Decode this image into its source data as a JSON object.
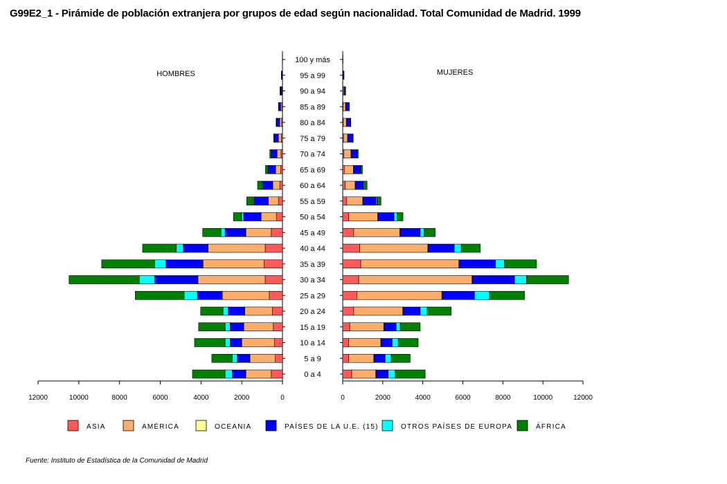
{
  "chart_data": {
    "type": "bar",
    "orientation": "horizontal-pyramid",
    "title": "G99E2_1 - Pirámide de población extranjera por grupos de edad según nacionalidad. Total Comunidad de Madrid. 1999",
    "left_label": "HOMBRES",
    "right_label": "MUJERES",
    "categories": [
      "0 a 4",
      "5 a 9",
      "10 a 14",
      "15 a 19",
      "20 a 24",
      "25 a 29",
      "30 a 34",
      "35 a 39",
      "40 a 44",
      "45 a 49",
      "50 a 54",
      "55 a 59",
      "60 a 64",
      "65 a 69",
      "70 a 74",
      "75 a 79",
      "80 a 84",
      "85 a 89",
      "90 a 94",
      "95 a 99",
      "100 y más"
    ],
    "xlim": [
      0,
      12000
    ],
    "x_ticks_left": [
      "12000",
      "10000",
      "8000",
      "6000",
      "4000",
      "2000",
      "0"
    ],
    "x_ticks_right": [
      "0",
      "2000",
      "4000",
      "6000",
      "8000",
      "10000",
      "12000"
    ],
    "grid": false,
    "legend_position": "bottom",
    "series": [
      {
        "name": "ASIA",
        "color": "#ff5a5a",
        "hombres": [
          550,
          350,
          400,
          450,
          500,
          650,
          850,
          900,
          850,
          550,
          300,
          200,
          130,
          90,
          70,
          50,
          40,
          30,
          20,
          10,
          0
        ],
        "mujeres": [
          450,
          300,
          300,
          350,
          550,
          700,
          800,
          900,
          850,
          550,
          300,
          200,
          120,
          80,
          60,
          40,
          30,
          20,
          10,
          5,
          0
        ]
      },
      {
        "name": "AMÉRICA",
        "color": "#ffad6b",
        "hombres": [
          1250,
          1250,
          1600,
          1450,
          1350,
          2300,
          3300,
          3000,
          2800,
          1250,
          750,
          500,
          350,
          250,
          200,
          150,
          100,
          60,
          30,
          10,
          0
        ],
        "mujeres": [
          1200,
          1250,
          1600,
          1700,
          2450,
          4250,
          5650,
          4900,
          3400,
          2300,
          1450,
          800,
          500,
          450,
          350,
          200,
          150,
          120,
          50,
          20,
          5
        ]
      },
      {
        "name": "OCEANIA",
        "color": "#ffff99",
        "hombres": [
          20,
          20,
          20,
          20,
          20,
          30,
          30,
          30,
          20,
          20,
          10,
          10,
          5,
          5,
          5,
          0,
          0,
          0,
          0,
          0,
          0
        ],
        "mujeres": [
          20,
          20,
          20,
          20,
          20,
          30,
          30,
          30,
          20,
          20,
          10,
          10,
          5,
          5,
          5,
          0,
          0,
          0,
          0,
          0,
          0
        ]
      },
      {
        "name": "PAÍSES DE LA U.E. (15)",
        "color": "#0000ff",
        "hombres": [
          650,
          600,
          550,
          650,
          800,
          1200,
          2100,
          1800,
          1200,
          1000,
          850,
          700,
          500,
          350,
          270,
          200,
          150,
          100,
          70,
          40,
          10
        ],
        "mujeres": [
          600,
          550,
          550,
          600,
          850,
          1600,
          2100,
          1800,
          1300,
          1000,
          800,
          650,
          400,
          350,
          300,
          250,
          200,
          180,
          80,
          40,
          10
        ]
      },
      {
        "name": "OTROS PAÍSES DE EUROPA",
        "color": "#00ffff",
        "hombres": [
          350,
          250,
          250,
          250,
          250,
          650,
          750,
          550,
          350,
          200,
          100,
          50,
          40,
          20,
          10,
          5,
          5,
          0,
          0,
          0,
          0
        ],
        "mujeres": [
          350,
          300,
          300,
          200,
          350,
          750,
          600,
          450,
          350,
          200,
          150,
          50,
          40,
          20,
          10,
          5,
          5,
          0,
          0,
          0,
          0
        ]
      },
      {
        "name": "ÁFRICA",
        "color": "#008000",
        "hombres": [
          1600,
          1000,
          1500,
          1300,
          1100,
          2400,
          3450,
          2600,
          1650,
          900,
          400,
          300,
          200,
          120,
          70,
          30,
          20,
          10,
          5,
          0,
          0
        ],
        "mujeres": [
          1500,
          950,
          1000,
          1000,
          1200,
          1750,
          2100,
          1600,
          950,
          550,
          300,
          200,
          150,
          80,
          50,
          30,
          20,
          10,
          5,
          0,
          0
        ]
      }
    ]
  },
  "source_note": "Fuente: Instituto de Estadística de la Comunidad de Madrid"
}
